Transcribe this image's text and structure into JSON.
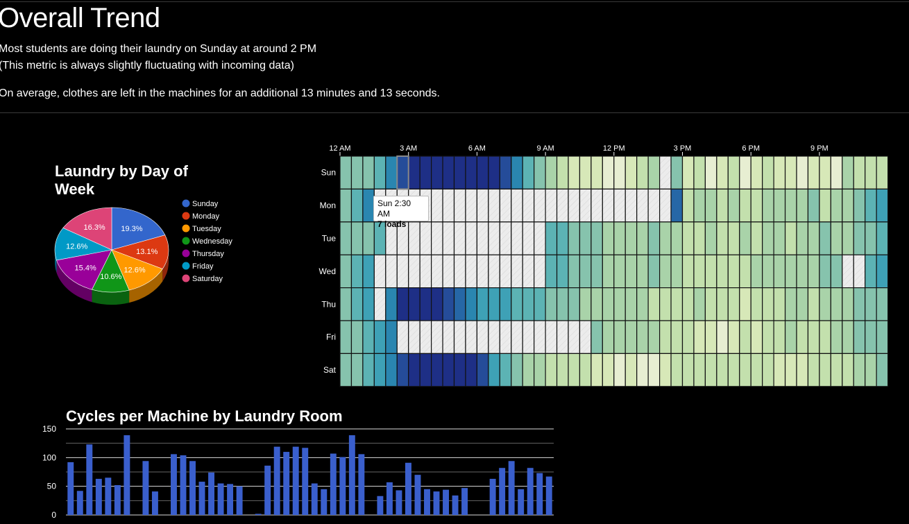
{
  "page": {
    "title": "Overall Trend",
    "summary_line1": "Most students are doing their laundry on Sunday at around 2 PM",
    "summary_line2": "(This metric is always slightly fluctuating with incoming data)",
    "summary_line3": "On average, clothes are left in the machines for an additional 13 minutes and 13 seconds."
  },
  "colors": {
    "background": "#000000",
    "bar": "#3a5fcd",
    "heatmap_empty": "#ececec"
  },
  "chart_data": [
    {
      "type": "pie",
      "title": "Laundry by Day of Week",
      "legend_position": "right",
      "slices": [
        {
          "label": "Sunday",
          "value": 19.3,
          "display": "19.3%",
          "color": "#3366cc"
        },
        {
          "label": "Monday",
          "value": 13.1,
          "display": "13.1%",
          "color": "#dc3912"
        },
        {
          "label": "Tuesday",
          "value": 12.6,
          "display": "12.6%",
          "color": "#ff9900"
        },
        {
          "label": "Wednesday",
          "value": 10.6,
          "display": "10.6%",
          "color": "#109618"
        },
        {
          "label": "Thursday",
          "value": 15.4,
          "display": "15.4%",
          "color": "#990099"
        },
        {
          "label": "Friday",
          "value": 12.6,
          "display": "12.6%",
          "color": "#0099c6"
        },
        {
          "label": "Saturday",
          "value": 16.3,
          "display": "16.3%",
          "color": "#dd4477"
        }
      ]
    },
    {
      "type": "heatmap",
      "rows": [
        "Sun",
        "Mon",
        "Tue",
        "Wed",
        "Thu",
        "Fri",
        "Sat"
      ],
      "x_tick_labels": [
        "12 AM",
        "3 AM",
        "6 AM",
        "9 AM",
        "12 PM",
        "3 PM",
        "6 PM",
        "9 PM"
      ],
      "columns_per_day": 48,
      "values": [
        [
          2,
          2,
          2,
          3,
          5,
          7,
          8,
          10,
          10,
          9,
          9,
          8,
          9,
          8,
          7,
          5,
          3,
          2,
          1,
          0,
          -1,
          -1,
          -1,
          -2,
          -2,
          -1,
          0,
          1,
          -3,
          2,
          -1,
          0,
          -2,
          -1,
          0,
          -2,
          -1,
          0,
          -1,
          -1,
          -2,
          -1,
          -1,
          -2,
          1,
          0,
          0,
          0
        ],
        [
          2,
          3,
          5,
          -3,
          -3,
          -3,
          -3,
          -3,
          -3,
          -3,
          -3,
          -3,
          -3,
          -3,
          -3,
          -3,
          -3,
          -3,
          -3,
          -3,
          -3,
          -3,
          -3,
          -3,
          -3,
          -3,
          -3,
          -3,
          -3,
          6,
          0,
          1,
          1,
          0,
          1,
          0,
          0,
          1,
          1,
          1,
          1,
          2,
          0,
          1,
          1,
          2,
          3,
          4
        ],
        [
          2,
          2,
          2,
          3,
          -3,
          -3,
          -3,
          -3,
          -3,
          -3,
          -3,
          -3,
          -3,
          -3,
          -3,
          -3,
          -3,
          -3,
          3,
          3,
          2,
          2,
          2,
          1,
          1,
          1,
          1,
          2,
          1,
          1,
          0,
          0,
          1,
          0,
          0,
          1,
          0,
          1,
          1,
          0,
          1,
          1,
          2,
          1,
          1,
          2,
          2,
          3
        ],
        [
          2,
          3,
          4,
          -3,
          -3,
          -3,
          -3,
          -3,
          -3,
          -3,
          -3,
          -3,
          -3,
          -3,
          -3,
          -3,
          -3,
          -3,
          3,
          3,
          2,
          2,
          2,
          1,
          1,
          1,
          1,
          2,
          1,
          1,
          0,
          0,
          0,
          0,
          0,
          0,
          1,
          1,
          1,
          1,
          1,
          1,
          2,
          2,
          -3,
          -3,
          3,
          4
        ],
        [
          2,
          3,
          4,
          -3,
          5,
          8,
          10,
          9,
          8,
          7,
          6,
          5,
          4,
          4,
          4,
          3,
          3,
          3,
          2,
          2,
          2,
          1,
          1,
          1,
          1,
          1,
          1,
          0,
          0,
          0,
          0,
          1,
          0,
          0,
          0,
          -1,
          0,
          0,
          0,
          1,
          1,
          0,
          1,
          1,
          1,
          2,
          2,
          2
        ],
        [
          2,
          2,
          3,
          4,
          5,
          -3,
          -3,
          -3,
          -3,
          -3,
          -3,
          -3,
          -3,
          -3,
          -3,
          -3,
          -3,
          -3,
          -3,
          -3,
          -3,
          -3,
          2,
          1,
          1,
          1,
          1,
          1,
          0,
          0,
          0,
          -1,
          -1,
          -2,
          -1,
          0,
          -1,
          0,
          0,
          1,
          0,
          0,
          0,
          1,
          1,
          2,
          2,
          2
        ],
        [
          2,
          2,
          3,
          4,
          5,
          7,
          8,
          9,
          10,
          10,
          9,
          8,
          7,
          4,
          3,
          2,
          1,
          1,
          0,
          0,
          0,
          0,
          -1,
          -1,
          -2,
          -1,
          -2,
          -2,
          -1,
          0,
          0,
          0,
          0,
          0,
          0,
          0,
          0,
          0,
          -1,
          -1,
          -1,
          0,
          0,
          0,
          0,
          1,
          1,
          2
        ]
      ],
      "tooltip": {
        "time": "Sun 2:30 AM",
        "value": "7 loads"
      }
    },
    {
      "type": "bar",
      "title": "Cycles per Machine by Laundry Room",
      "ylim": [
        0,
        150
      ],
      "y_ticks": [
        0,
        50,
        100,
        150
      ],
      "values": [
        92,
        42,
        123,
        63,
        65,
        52,
        139,
        0,
        94,
        41,
        0,
        106,
        104,
        94,
        58,
        74,
        55,
        54,
        50,
        0,
        2,
        86,
        119,
        110,
        119,
        117,
        55,
        45,
        107,
        101,
        139,
        106,
        0,
        33,
        57,
        43,
        91,
        70,
        45,
        41,
        44,
        34,
        47,
        0,
        0,
        63,
        82,
        94,
        45,
        82,
        73,
        67
      ]
    }
  ]
}
